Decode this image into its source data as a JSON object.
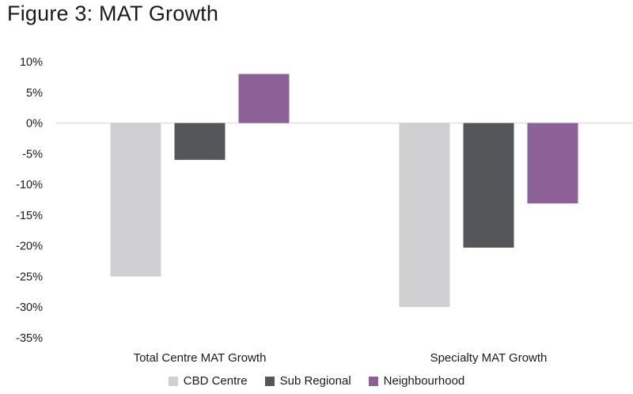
{
  "title": "Figure 3: MAT Growth",
  "chart_data": {
    "type": "bar",
    "categories": [
      "Total Centre MAT Growth",
      "Specialty MAT Growth"
    ],
    "series": [
      {
        "name": "CBD Centre",
        "color": "#d0d0d2",
        "values": [
          -25,
          -30
        ]
      },
      {
        "name": "Sub Regional",
        "color": "#55565a",
        "values": [
          -6,
          -20.3
        ]
      },
      {
        "name": "Neighbourhood",
        "color": "#8d6198",
        "values": [
          8,
          -13.1
        ]
      }
    ],
    "ylim": [
      -35,
      10
    ],
    "yticks": [
      10,
      5,
      0,
      -5,
      -10,
      -15,
      -20,
      -25,
      -30,
      -35
    ],
    "ytick_labels": [
      "10%",
      "5%",
      "0%",
      "-5%",
      "-10%",
      "-15%",
      "-20%",
      "-25%",
      "-30%",
      "-35%"
    ],
    "xlabel": "",
    "ylabel": "",
    "grid": false,
    "legend_position": "bottom"
  }
}
